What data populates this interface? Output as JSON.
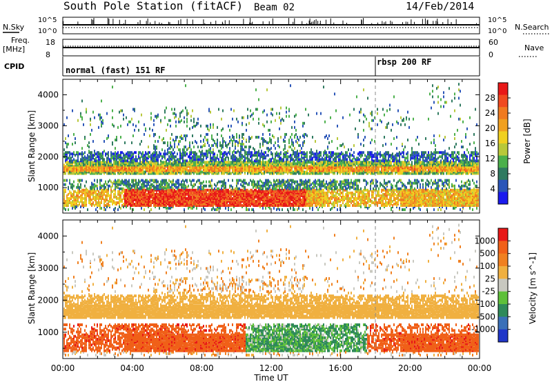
{
  "header": {
    "title": "South Pole Station (fitACF)",
    "beam": "Beam 02",
    "date": "14/Feb/2014"
  },
  "top_panels": {
    "nsky_label": "N.Sky",
    "nsky_ticks": [
      "10^5",
      "10^0"
    ],
    "nsearch_label": "N.Search",
    "nsearch_ticks": [
      "10^5",
      "10^0"
    ],
    "freq_label": "Freq.",
    "freq_unit": "[MHz]",
    "freq_ticks": [
      "18",
      "8"
    ],
    "nave_label": "Nave",
    "nave_ticks": [
      "60",
      "0"
    ],
    "cpid_label": "CPID",
    "cpid_segments": [
      {
        "label": "normal (fast) 151 RF",
        "start_hour": 0
      },
      {
        "label": "rbsp 200 RF",
        "start_hour": 18.0
      }
    ]
  },
  "chart_data": [
    {
      "type": "heatmap",
      "title": "",
      "xlabel": "Time UT",
      "ylabel": "Slant Range [km]",
      "xlim_hours": [
        0,
        24
      ],
      "x_ticks": [
        "00:00",
        "04:00",
        "08:00",
        "12:00",
        "16:00",
        "20:00",
        "00:00"
      ],
      "ylim": [
        180,
        4500
      ],
      "y_ticks": [
        "1000",
        "2000",
        "3000",
        "4000"
      ],
      "y_tick_values": [
        1000,
        2000,
        3000,
        4000
      ],
      "colorbar": {
        "label": "Power [dB]",
        "tick_labels": [
          "4",
          "8",
          "12",
          "16",
          "20",
          "24",
          "28"
        ],
        "colors": [
          "#1a1aee",
          "#2a55b8",
          "#2f7a60",
          "#4bb04b",
          "#b8c83a",
          "#f0d020",
          "#f0a020",
          "#f07a20",
          "#f04a20",
          "#e81818"
        ]
      }
    },
    {
      "type": "heatmap",
      "title": "",
      "xlabel": "Time UT",
      "ylabel": "Slant Range [km]",
      "xlim_hours": [
        0,
        24
      ],
      "x_ticks": [
        "00:00",
        "04:00",
        "08:00",
        "12:00",
        "16:00",
        "20:00",
        "00:00"
      ],
      "ylim": [
        180,
        4500
      ],
      "y_ticks": [
        "1000",
        "2000",
        "3000",
        "4000"
      ],
      "y_tick_values": [
        1000,
        2000,
        3000,
        4000
      ],
      "colorbar": {
        "label": "Velocity [m s^-1]",
        "tick_labels": [
          "1000",
          "500",
          "100",
          "25",
          "-25",
          "-100",
          "-500",
          "-1000"
        ],
        "colors": [
          "#2036c8",
          "#3a70b8",
          "#2f8a5a",
          "#5ec03a",
          "#c8c8c0",
          "#f0b040",
          "#f08020",
          "#f06018",
          "#e81818"
        ]
      }
    }
  ]
}
